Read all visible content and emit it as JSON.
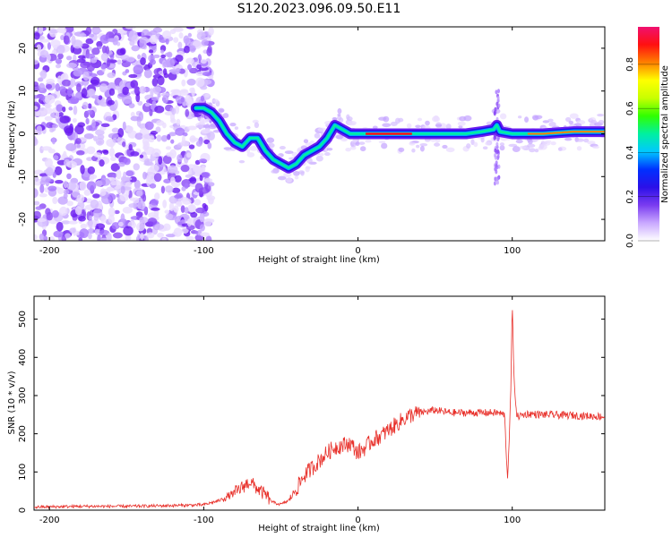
{
  "title": "S120.2023.096.09.50.E11",
  "colorbar": {
    "label": "Normalized spectral amplitude",
    "ticks": [
      "0.0",
      "0.2",
      "0.4",
      "0.6",
      "0.8"
    ],
    "tick_values": [
      0.0,
      0.2,
      0.4,
      0.6,
      0.8
    ],
    "range": [
      0,
      0.97
    ],
    "colormap": [
      "#ffffff",
      "#c9a8ff",
      "#7a3cf0",
      "#2b10e8",
      "#0030ff",
      "#00c8ff",
      "#00f0a0",
      "#30ff00",
      "#c8ff00",
      "#ffff00",
      "#ff8000",
      "#ff1010",
      "#f01070"
    ]
  },
  "chart_data": [
    {
      "type": "heatmap",
      "xlabel": "Height of straight line (km)",
      "ylabel": "Frequency (Hz)",
      "xlim": [
        -210,
        160
      ],
      "ylim": [
        -25,
        25
      ],
      "xticks": [
        -200,
        -100,
        0,
        100
      ],
      "xtick_labels": [
        "-200",
        "-100",
        "0",
        "100"
      ],
      "yticks": [
        -20,
        -10,
        0,
        10,
        20
      ],
      "ytick_labels": [
        "-20",
        "-10",
        "0",
        "10",
        "20"
      ],
      "ridge": {
        "x": [
          -105,
          -100,
          -95,
          -90,
          -85,
          -80,
          -75,
          -70,
          -65,
          -60,
          -55,
          -50,
          -45,
          -40,
          -35,
          -30,
          -25,
          -20,
          -15,
          -10,
          -5,
          0,
          10,
          20,
          30,
          40,
          50,
          60,
          70,
          80,
          88,
          90,
          92,
          100,
          120,
          140,
          160
        ],
        "y": [
          6,
          6,
          5,
          3,
          0,
          -2,
          -3,
          -1,
          -1,
          -4,
          -6,
          -7,
          -8,
          -7,
          -5,
          -4,
          -3,
          -1,
          2,
          1,
          0,
          0,
          0,
          0,
          0,
          0,
          0,
          0,
          0,
          0.5,
          1,
          2,
          0.5,
          0,
          0,
          0.5,
          0.5
        ]
      },
      "noise_region_x": [
        -210,
        -95
      ],
      "spike_x": 90
    },
    {
      "type": "line",
      "xlabel": "Height of straight line (km)",
      "ylabel": "SNR (10 * v/v)",
      "xlim": [
        -210,
        160
      ],
      "ylim": [
        0,
        560
      ],
      "xticks": [
        -200,
        -100,
        0,
        100
      ],
      "xtick_labels": [
        "-200",
        "-100",
        "0",
        "100"
      ],
      "yticks": [
        0,
        100,
        200,
        300,
        400,
        500
      ],
      "ytick_labels": [
        "0",
        "100",
        "200",
        "300",
        "400",
        "500"
      ],
      "color": "#e8302a",
      "x": [
        -210,
        -180,
        -150,
        -120,
        -100,
        -90,
        -80,
        -75,
        -70,
        -65,
        -60,
        -55,
        -50,
        -45,
        -40,
        -35,
        -30,
        -25,
        -20,
        -15,
        -10,
        -5,
        0,
        5,
        10,
        15,
        20,
        25,
        30,
        35,
        40,
        45,
        50,
        55,
        60,
        70,
        80,
        90,
        95,
        97,
        99,
        100,
        101,
        103,
        110,
        120,
        140,
        160
      ],
      "y": [
        8,
        10,
        10,
        12,
        14,
        25,
        45,
        60,
        75,
        55,
        40,
        20,
        15,
        25,
        55,
        90,
        110,
        130,
        150,
        165,
        170,
        175,
        150,
        165,
        185,
        195,
        210,
        225,
        240,
        250,
        255,
        258,
        262,
        258,
        255,
        255,
        255,
        255,
        250,
        80,
        300,
        550,
        350,
        245,
        252,
        250,
        248,
        245
      ]
    }
  ]
}
